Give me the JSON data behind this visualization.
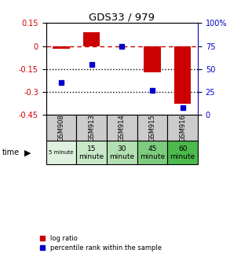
{
  "title": "GDS33 / 979",
  "samples": [
    "GSM908",
    "GSM913",
    "GSM914",
    "GSM915",
    "GSM916"
  ],
  "time_labels_row1": [
    "5 minute",
    "15",
    "30",
    "45",
    "60"
  ],
  "time_labels_row2": [
    "",
    "minute",
    "minute",
    "minute",
    "minute"
  ],
  "time_colors": [
    "#dff0df",
    "#c8e8c8",
    "#b2e0b2",
    "#7dcc7d",
    "#4cba4c"
  ],
  "log_ratio": [
    -0.02,
    0.09,
    0.0,
    -0.17,
    -0.38
  ],
  "percentile_rank": [
    35,
    55,
    75,
    27,
    8
  ],
  "ylim_left": [
    -0.45,
    0.15
  ],
  "ylim_right": [
    0,
    100
  ],
  "yticks_left": [
    0.15,
    0.0,
    -0.15,
    -0.3,
    -0.45
  ],
  "yticks_right": [
    100,
    75,
    50,
    25,
    0
  ],
  "left_color": "#cc0000",
  "right_color": "#0000cc",
  "bar_width": 0.55,
  "dotted_lines": [
    -0.15,
    -0.3
  ],
  "background_color": "#ffffff",
  "gsm_bg_color": "#cccccc",
  "legend_red_label": "log ratio",
  "legend_blue_label": "percentile rank within the sample"
}
